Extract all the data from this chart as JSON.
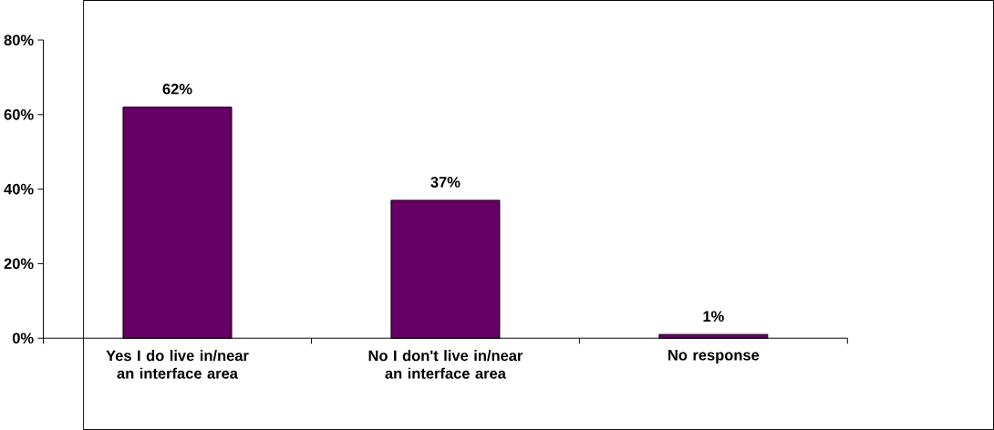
{
  "chart_data": {
    "type": "bar",
    "categories": [
      "Yes I do live in/near an interface area",
      "No I don't live in/near an interface area",
      "No response"
    ],
    "values": [
      62,
      37,
      1
    ],
    "value_labels": [
      "62%",
      "37%",
      "1%"
    ],
    "color": "#660066",
    "ylim": [
      0,
      80
    ],
    "yticks": [
      {
        "value": 0,
        "label": "0%"
      },
      {
        "value": 20,
        "label": "20%"
      },
      {
        "value": 40,
        "label": "40%"
      },
      {
        "value": 60,
        "label": "60%"
      },
      {
        "value": 80,
        "label": "80%"
      }
    ]
  }
}
